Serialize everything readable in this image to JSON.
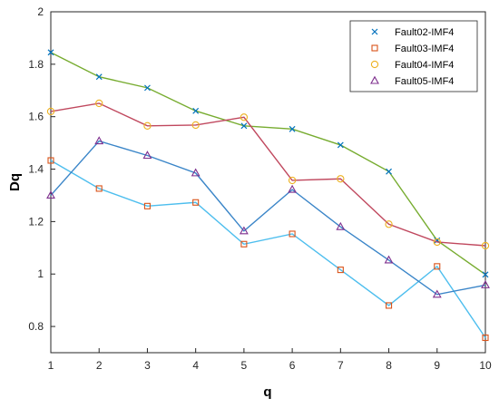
{
  "chart_data": {
    "type": "line",
    "xlabel": "q",
    "ylabel": "Dq",
    "xlim": [
      1,
      10
    ],
    "ylim": [
      0.7,
      2.0
    ],
    "x_ticks": [
      1,
      2,
      3,
      4,
      5,
      6,
      7,
      8,
      9,
      10
    ],
    "y_ticks": [
      0.8,
      1,
      1.2,
      1.4,
      1.6,
      1.8,
      2
    ],
    "grid": false,
    "legend_position": "top-right",
    "x": [
      1,
      2,
      3,
      4,
      5,
      6,
      7,
      8,
      9,
      10
    ],
    "series": [
      {
        "name": "Fault02-IMF4",
        "marker": "x",
        "marker_color": "#0072BD",
        "line_color": "#77AC30",
        "values": [
          1.845,
          1.752,
          1.71,
          1.622,
          1.565,
          1.553,
          1.492,
          1.391,
          1.128,
          0.998
        ]
      },
      {
        "name": "Fault03-IMF4",
        "marker": "square",
        "marker_color": "#D95319",
        "line_color": "#4DBEEE",
        "values": [
          1.433,
          1.326,
          1.259,
          1.273,
          1.114,
          1.153,
          1.016,
          0.88,
          1.029,
          0.757
        ]
      },
      {
        "name": "Fault04-IMF4",
        "marker": "circle",
        "marker_color": "#EDB120",
        "line_color": "#C0485E",
        "values": [
          1.62,
          1.651,
          1.565,
          1.568,
          1.598,
          1.357,
          1.363,
          1.19,
          1.122,
          1.108
        ]
      },
      {
        "name": "Fault05-IMF4",
        "marker": "triangle",
        "marker_color": "#7E2F8E",
        "line_color": "#3A85C8",
        "values": [
          1.3,
          1.507,
          1.452,
          1.385,
          1.164,
          1.322,
          1.18,
          1.053,
          0.922,
          0.958
        ]
      }
    ]
  }
}
